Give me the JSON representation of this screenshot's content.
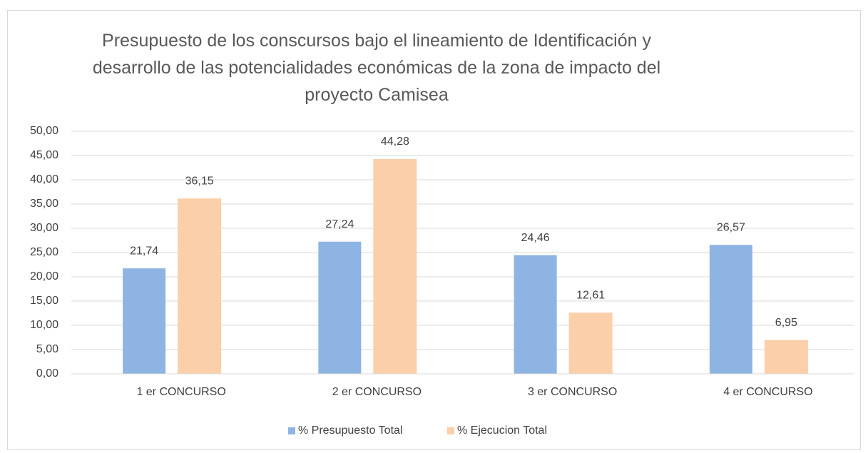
{
  "chart_data": {
    "type": "bar",
    "title": "Presupuesto de los conscursos bajo el lineamiento de Identificación y desarrollo de las potencialidades económicas de la zona de impacto del proyecto Camisea",
    "categories": [
      "1 er CONCURSO",
      "2 er CONCURSO",
      "3 er CONCURSO",
      "4 er CONCURSO"
    ],
    "series": [
      {
        "name": "% Presupuesto Total",
        "color": "#8db4e2",
        "values": [
          21.74,
          27.24,
          24.46,
          26.57
        ],
        "value_labels": [
          "21,74",
          "27,24",
          "24,46",
          "26,57"
        ]
      },
      {
        "name": "% Ejecucion Total",
        "color": "#fbcfa9",
        "values": [
          36.15,
          44.28,
          12.61,
          6.95
        ],
        "value_labels": [
          "36,15",
          "44,28",
          "12,61",
          "6,95"
        ]
      }
    ],
    "ylim": [
      0,
      50
    ],
    "yticks": [
      {
        "value": 0,
        "label": "0,00"
      },
      {
        "value": 5,
        "label": "5,00"
      },
      {
        "value": 10,
        "label": "10,00"
      },
      {
        "value": 15,
        "label": "15,00"
      },
      {
        "value": 20,
        "label": "20,00"
      },
      {
        "value": 25,
        "label": "25,00"
      },
      {
        "value": 30,
        "label": "30,00"
      },
      {
        "value": 35,
        "label": "35,00"
      },
      {
        "value": 40,
        "label": "40,00"
      },
      {
        "value": 45,
        "label": "45,00"
      },
      {
        "value": 50,
        "label": "50,00"
      }
    ],
    "grid": true,
    "legend": "bottom"
  }
}
